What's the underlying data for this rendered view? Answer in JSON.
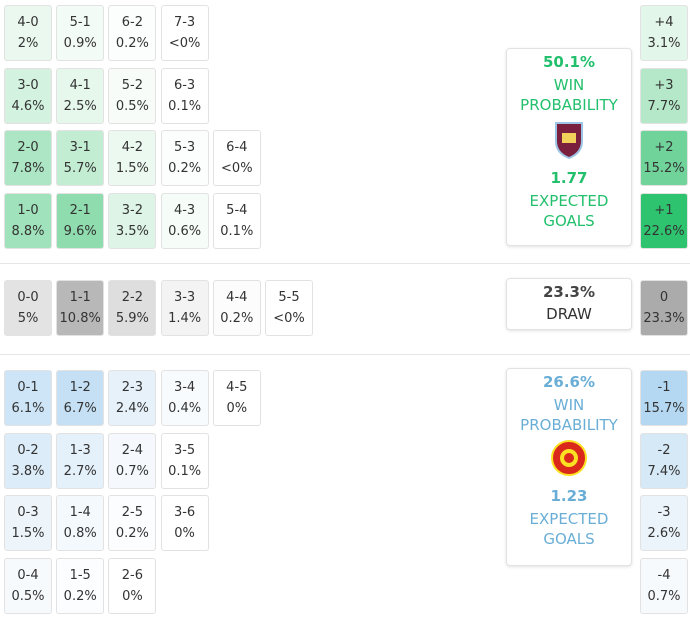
{
  "home": {
    "rows": [
      [
        {
          "score": "4-0",
          "prob": "2%",
          "color": "#eaf8ef"
        },
        {
          "score": "5-1",
          "prob": "0.9%",
          "color": "#f3fbf6"
        },
        {
          "score": "6-2",
          "prob": "0.2%",
          "color": "#fbfefc"
        },
        {
          "score": "7-3",
          "prob": "<0%",
          "color": "#ffffff"
        }
      ],
      [
        {
          "score": "3-0",
          "prob": "4.6%",
          "color": "#d3f2df"
        },
        {
          "score": "4-1",
          "prob": "2.5%",
          "color": "#e6f7ec"
        },
        {
          "score": "5-2",
          "prob": "0.5%",
          "color": "#f7fcf9"
        },
        {
          "score": "6-3",
          "prob": "0.1%",
          "color": "#ffffff"
        }
      ],
      [
        {
          "score": "2-0",
          "prob": "7.8%",
          "color": "#ade6c4"
        },
        {
          "score": "3-1",
          "prob": "5.7%",
          "color": "#c3edd3"
        },
        {
          "score": "4-2",
          "prob": "1.5%",
          "color": "#ecf9f1"
        },
        {
          "score": "5-3",
          "prob": "0.2%",
          "color": "#fbfefc"
        },
        {
          "score": "6-4",
          "prob": "<0%",
          "color": "#ffffff"
        }
      ],
      [
        {
          "score": "1-0",
          "prob": "8.8%",
          "color": "#a0e2bb"
        },
        {
          "score": "2-1",
          "prob": "9.6%",
          "color": "#8fdcae"
        },
        {
          "score": "3-2",
          "prob": "3.5%",
          "color": "#ddf4e6"
        },
        {
          "score": "4-3",
          "prob": "0.6%",
          "color": "#f6fcf8"
        },
        {
          "score": "5-4",
          "prob": "0.1%",
          "color": "#ffffff"
        }
      ]
    ],
    "margins": [
      {
        "label": "+4",
        "prob": "3.1%",
        "color": "#e2f6e9"
      },
      {
        "label": "+3",
        "prob": "7.7%",
        "color": "#b4e8c8"
      },
      {
        "label": "+2",
        "prob": "15.2%",
        "color": "#6fd39a"
      },
      {
        "label": "+1",
        "prob": "22.6%",
        "color": "#2ec46f"
      }
    ],
    "card": {
      "accent": "#22bf6c",
      "win_prob": "50.1%",
      "win_label": "WIN PROBABILITY",
      "xg": "1.77",
      "xg_label": "EXPECTED GOALS"
    }
  },
  "draw": {
    "rows": [
      [
        {
          "score": "0-0",
          "prob": "5%",
          "color": "#e3e3e3"
        },
        {
          "score": "1-1",
          "prob": "10.8%",
          "color": "#b8b8b8"
        },
        {
          "score": "2-2",
          "prob": "5.9%",
          "color": "#dedede"
        },
        {
          "score": "3-3",
          "prob": "1.4%",
          "color": "#f3f3f3"
        },
        {
          "score": "4-4",
          "prob": "0.2%",
          "color": "#fcfcfc"
        },
        {
          "score": "5-5",
          "prob": "<0%",
          "color": "#ffffff"
        }
      ]
    ],
    "margins": [
      {
        "label": "0",
        "prob": "23.3%",
        "color": "#ababab"
      }
    ],
    "card": {
      "accent": "#444444",
      "win_prob": "23.3%",
      "win_label": "DRAW"
    }
  },
  "away": {
    "rows": [
      [
        {
          "score": "0-1",
          "prob": "6.1%",
          "color": "#cde5f6"
        },
        {
          "score": "1-2",
          "prob": "6.7%",
          "color": "#c5e0f4"
        },
        {
          "score": "2-3",
          "prob": "2.4%",
          "color": "#e6f1fa"
        },
        {
          "score": "3-4",
          "prob": "0.4%",
          "color": "#f8fbfe"
        },
        {
          "score": "4-5",
          "prob": "0%",
          "color": "#ffffff"
        }
      ],
      [
        {
          "score": "0-2",
          "prob": "3.8%",
          "color": "#dcecf8"
        },
        {
          "score": "1-3",
          "prob": "2.7%",
          "color": "#e4f0fa"
        },
        {
          "score": "2-4",
          "prob": "0.7%",
          "color": "#f5f9fd"
        },
        {
          "score": "3-5",
          "prob": "0.1%",
          "color": "#ffffff"
        }
      ],
      [
        {
          "score": "0-3",
          "prob": "1.5%",
          "color": "#edf5fb"
        },
        {
          "score": "1-4",
          "prob": "0.8%",
          "color": "#f4f9fd"
        },
        {
          "score": "2-5",
          "prob": "0.2%",
          "color": "#fbfdfe"
        },
        {
          "score": "3-6",
          "prob": "0%",
          "color": "#ffffff"
        }
      ],
      [
        {
          "score": "0-4",
          "prob": "0.5%",
          "color": "#f7fafd"
        },
        {
          "score": "1-5",
          "prob": "0.2%",
          "color": "#fbfdfe"
        },
        {
          "score": "2-6",
          "prob": "0%",
          "color": "#ffffff"
        }
      ]
    ],
    "margins": [
      {
        "label": "-1",
        "prob": "15.7%",
        "color": "#b4d8f2"
      },
      {
        "label": "-2",
        "prob": "7.4%",
        "color": "#d6e9f7"
      },
      {
        "label": "-3",
        "prob": "2.6%",
        "color": "#ebf4fb"
      },
      {
        "label": "-4",
        "prob": "0.7%",
        "color": "#f6fafd"
      }
    ],
    "card": {
      "accent": "#6aaed6",
      "win_prob": "26.6%",
      "win_label": "WIN PROBABILITY",
      "xg": "1.23",
      "xg_label": "EXPECTED GOALS"
    }
  }
}
